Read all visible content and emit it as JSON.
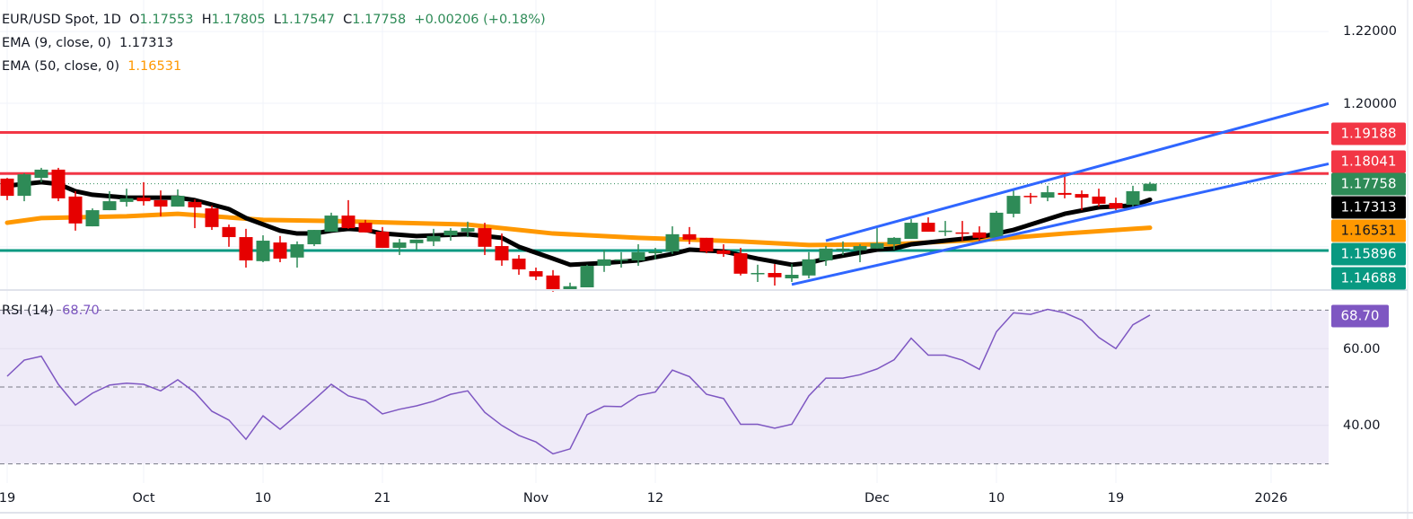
{
  "header": {
    "symbol": "EUR/USD Spot, 1D",
    "o_label": "O",
    "open": "1.17553",
    "h_label": "H",
    "high": "1.17805",
    "l_label": "L",
    "low": "1.17547",
    "c_label": "C",
    "close": "1.17758",
    "change": "+0.00206 (+0.18%)",
    "ema9_label": "EMA (9, close, 0)",
    "ema9_value": "1.17313",
    "ema50_label": "EMA (50, close, 0)",
    "ema50_value": "1.16531",
    "rsi_label": "RSI (14)",
    "rsi_value": "68.70"
  },
  "colors": {
    "up": "#2e8b57",
    "down": "#e60000",
    "resistance": "#f23645",
    "support": "#089981",
    "channel": "#2f66ff",
    "ema9": "#000000",
    "ema50": "#ff9800",
    "rsi": "#7e57c2",
    "rsi_band": "#efebf8"
  },
  "price_axis": {
    "ticks": [
      "1.22000",
      "1.20000"
    ],
    "tick_values": [
      1.22,
      1.2
    ],
    "tags": [
      {
        "text": "1.19188",
        "value": 1.19188,
        "color": "#f23645"
      },
      {
        "text": "1.18041",
        "value": 1.18041,
        "color": "#f23645"
      },
      {
        "text": "1.17758",
        "value": 1.17758,
        "color": "#2e8b57"
      },
      {
        "text": "1.17313",
        "value": 1.17313,
        "color": "#000000"
      },
      {
        "text": "1.16531",
        "value": 1.16531,
        "color": "#ff9800"
      },
      {
        "text": "1.15896",
        "value": 1.15896,
        "color": "#089981"
      },
      {
        "text": "1.14688",
        "value": 1.14688,
        "color": "#089981"
      }
    ]
  },
  "rsi_axis": {
    "ticks": [
      "60.00",
      "40.00"
    ],
    "tick_values": [
      60,
      40
    ],
    "tag": "68.70",
    "bands": [
      70,
      50,
      30
    ]
  },
  "x_axis": {
    "labels": [
      "19",
      "Oct",
      "10",
      "21",
      "Nov",
      "12",
      "Dec",
      "10",
      "19",
      "2026"
    ],
    "bar_index": [
      0,
      8,
      15,
      22,
      31,
      38,
      51,
      58,
      65,
      74.1
    ]
  },
  "chart_data": [
    {
      "type": "candlestick",
      "title": "EUR/USD Spot, 1D",
      "ylim": [
        1.1445,
        1.2275
      ],
      "ohlc": [
        [
          1.179,
          1.1792,
          1.173,
          1.1742
        ],
        [
          1.1742,
          1.1805,
          1.1727,
          1.1802
        ],
        [
          1.1792,
          1.182,
          1.178,
          1.1815
        ],
        [
          1.1815,
          1.182,
          1.1727,
          1.1735
        ],
        [
          1.174,
          1.1755,
          1.1645,
          1.1665
        ],
        [
          1.1657,
          1.1707,
          1.1657,
          1.1702
        ],
        [
          1.1702,
          1.1755,
          1.1702,
          1.1727
        ],
        [
          1.1725,
          1.1762,
          1.1712,
          1.1735
        ],
        [
          1.1737,
          1.178,
          1.1715,
          1.1727
        ],
        [
          1.173,
          1.1757,
          1.1685,
          1.1712
        ],
        [
          1.1712,
          1.176,
          1.1712,
          1.1742
        ],
        [
          1.1725,
          1.1732,
          1.1652,
          1.171
        ],
        [
          1.1707,
          1.1715,
          1.1647,
          1.1655
        ],
        [
          1.1655,
          1.1662,
          1.16,
          1.1627
        ],
        [
          1.1627,
          1.165,
          1.1542,
          1.1562
        ],
        [
          1.156,
          1.1632,
          1.1557,
          1.1617
        ],
        [
          1.1612,
          1.163,
          1.1557,
          1.1567
        ],
        [
          1.157,
          1.1615,
          1.1542,
          1.1607
        ],
        [
          1.1607,
          1.1647,
          1.1602,
          1.1647
        ],
        [
          1.1642,
          1.1695,
          1.1642,
          1.1687
        ],
        [
          1.1687,
          1.173,
          1.165,
          1.1652
        ],
        [
          1.1667,
          1.1675,
          1.164,
          1.164
        ],
        [
          1.1642,
          1.1655,
          1.1597,
          1.1597
        ],
        [
          1.1597,
          1.1622,
          1.1577,
          1.1612
        ],
        [
          1.161,
          1.162,
          1.159,
          1.162
        ],
        [
          1.1615,
          1.165,
          1.1602,
          1.163
        ],
        [
          1.1632,
          1.1652,
          1.1617,
          1.1645
        ],
        [
          1.1642,
          1.167,
          1.1627,
          1.1652
        ],
        [
          1.1652,
          1.1667,
          1.1577,
          1.16
        ],
        [
          1.1602,
          1.1637,
          1.1547,
          1.1562
        ],
        [
          1.1567,
          1.1577,
          1.1522,
          1.1537
        ],
        [
          1.1532,
          1.1542,
          1.1507,
          1.1517
        ],
        [
          1.152,
          1.1535,
          1.1475,
          1.148
        ],
        [
          1.148,
          1.15,
          1.148,
          1.149
        ],
        [
          1.1487,
          1.155,
          1.1487,
          1.1547
        ],
        [
          1.1547,
          1.1592,
          1.153,
          1.1565
        ],
        [
          1.1562,
          1.1585,
          1.1542,
          1.1565
        ],
        [
          1.1562,
          1.1607,
          1.1547,
          1.1585
        ],
        [
          1.1582,
          1.1597,
          1.1565,
          1.1587
        ],
        [
          1.1587,
          1.1657,
          1.158,
          1.1635
        ],
        [
          1.1635,
          1.1655,
          1.1607,
          1.162
        ],
        [
          1.1625,
          1.1625,
          1.1582,
          1.1587
        ],
        [
          1.159,
          1.1607,
          1.1572,
          1.158
        ],
        [
          1.1582,
          1.1597,
          1.152,
          1.1525
        ],
        [
          1.1525,
          1.155,
          1.1502,
          1.1527
        ],
        [
          1.1527,
          1.1552,
          1.1492,
          1.1515
        ],
        [
          1.1512,
          1.1552,
          1.1502,
          1.1522
        ],
        [
          1.152,
          1.1585,
          1.1512,
          1.1565
        ],
        [
          1.1562,
          1.1602,
          1.1547,
          1.1595
        ],
        [
          1.159,
          1.1615,
          1.1577,
          1.1595
        ],
        [
          1.159,
          1.1607,
          1.1557,
          1.1602
        ],
        [
          1.1595,
          1.1652,
          1.1595,
          1.161
        ],
        [
          1.1607,
          1.1627,
          1.1592,
          1.1625
        ],
        [
          1.1622,
          1.1677,
          1.1622,
          1.1667
        ],
        [
          1.1667,
          1.1682,
          1.1642,
          1.1642
        ],
        [
          1.1642,
          1.1672,
          1.163,
          1.1645
        ],
        [
          1.164,
          1.1672,
          1.1617,
          1.1637
        ],
        [
          1.164,
          1.1657,
          1.1615,
          1.1625
        ],
        [
          1.1625,
          1.17,
          1.1625,
          1.1695
        ],
        [
          1.1692,
          1.1762,
          1.1682,
          1.1742
        ],
        [
          1.1742,
          1.175,
          1.172,
          1.174
        ],
        [
          1.1737,
          1.177,
          1.1727,
          1.1752
        ],
        [
          1.175,
          1.1805,
          1.1735,
          1.1745
        ],
        [
          1.1747,
          1.1757,
          1.1702,
          1.1737
        ],
        [
          1.174,
          1.1762,
          1.1712,
          1.172
        ],
        [
          1.1722,
          1.1737,
          1.1702,
          1.1707
        ],
        [
          1.1717,
          1.177,
          1.171,
          1.1755
        ],
        [
          1.17553,
          1.17805,
          1.17547,
          1.17758
        ]
      ],
      "ema9": [
        [
          0,
          1.177
        ],
        [
          2,
          1.178
        ],
        [
          3,
          1.1775
        ],
        [
          4,
          1.1755
        ],
        [
          5,
          1.1745
        ],
        [
          7,
          1.1737
        ],
        [
          10,
          1.1737
        ],
        [
          11,
          1.173
        ],
        [
          13,
          1.1705
        ],
        [
          14,
          1.168
        ],
        [
          16,
          1.1645
        ],
        [
          17,
          1.1637
        ],
        [
          18,
          1.1637
        ],
        [
          19,
          1.1645
        ],
        [
          20,
          1.165
        ],
        [
          21,
          1.1647
        ],
        [
          22,
          1.1637
        ],
        [
          24,
          1.163
        ],
        [
          27,
          1.1635
        ],
        [
          29,
          1.1625
        ],
        [
          30,
          1.16
        ],
        [
          32,
          1.1567
        ],
        [
          33,
          1.155
        ],
        [
          35,
          1.1555
        ],
        [
          37,
          1.1562
        ],
        [
          39,
          1.158
        ],
        [
          40,
          1.1592
        ],
        [
          42,
          1.1587
        ],
        [
          44,
          1.1567
        ],
        [
          46,
          1.155
        ],
        [
          47,
          1.1555
        ],
        [
          48,
          1.1567
        ],
        [
          51,
          1.1592
        ],
        [
          52,
          1.1595
        ],
        [
          53,
          1.1607
        ],
        [
          55,
          1.1617
        ],
        [
          57,
          1.1627
        ],
        [
          59,
          1.1647
        ],
        [
          62,
          1.1692
        ],
        [
          64,
          1.171
        ],
        [
          66,
          1.1715
        ],
        [
          67,
          1.17313
        ]
      ],
      "ema50": [
        [
          0,
          1.1667
        ],
        [
          2,
          1.168
        ],
        [
          7,
          1.1685
        ],
        [
          10,
          1.1692
        ],
        [
          15,
          1.1675
        ],
        [
          19,
          1.1672
        ],
        [
          23,
          1.1667
        ],
        [
          27,
          1.1662
        ],
        [
          32,
          1.1637
        ],
        [
          37,
          1.1625
        ],
        [
          43,
          1.1615
        ],
        [
          47,
          1.1605
        ],
        [
          52,
          1.1607
        ],
        [
          58,
          1.1622
        ],
        [
          62,
          1.1637
        ],
        [
          67,
          1.16531
        ]
      ],
      "horizontal_levels": [
        {
          "value": 1.19188,
          "color": "#f23645"
        },
        {
          "value": 1.18041,
          "color": "#f23645"
        },
        {
          "value": 1.15896,
          "color": "#089981"
        }
      ],
      "last_price": 1.17758,
      "channel": {
        "upper": [
          [
            48,
            1.1617
          ],
          [
            65,
            1.18375
          ]
        ],
        "lower": [
          [
            46,
            1.1495
          ],
          [
            68,
            1.173
          ]
        ]
      }
    },
    {
      "type": "line",
      "title": "RSI (14)",
      "ylim": [
        25,
        73
      ],
      "bands": [
        70,
        50,
        30
      ],
      "values": [
        52.8,
        57,
        58,
        50.7,
        45.3,
        48.4,
        50.5,
        51,
        50.7,
        49,
        51.9,
        48.6,
        43.7,
        41.4,
        36.4,
        42.5,
        39,
        42.8,
        46.7,
        50.7,
        47.7,
        46.5,
        43,
        44.2,
        45.1,
        46.3,
        48.1,
        49,
        43.4,
        40,
        37.4,
        35.7,
        32.6,
        33.9,
        42.8,
        45,
        44.9,
        47.8,
        48.7,
        54.4,
        52.7,
        48.1,
        47,
        40.3,
        40.3,
        39.3,
        40.3,
        47.7,
        52.3,
        52.3,
        53.2,
        54.7,
        57.1,
        62.7,
        58.3,
        58.3,
        57,
        54.6,
        64.4,
        69.3,
        68.9,
        70.2,
        69.3,
        67.4,
        62.9,
        60,
        66.2,
        68.7
      ]
    }
  ]
}
